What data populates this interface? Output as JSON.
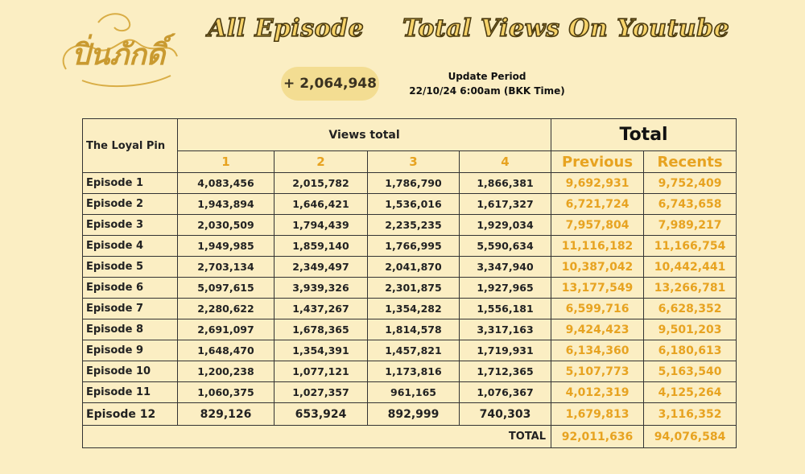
{
  "colors": {
    "background": "#fbeec3",
    "gold": "#e7a321",
    "pill": "#f3dd92",
    "title_fill": "#f7d36a"
  },
  "logo_text": "ปิ่นภักดิ์",
  "titles": {
    "left": "All Episode",
    "right": "Total Views On Youtube"
  },
  "delta": "+ 2,064,948",
  "update": {
    "label": "Update Period",
    "time": "22/10/24 6:00am (BKK Time)"
  },
  "table": {
    "show_name": "The Loyal Pin",
    "views_total_label": "Views total",
    "total_label": "Total",
    "part_headers": [
      "1",
      "2",
      "3",
      "4"
    ],
    "previous_label": "Previous",
    "recents_label": "Recents",
    "rows": [
      {
        "episode": "Episode 1",
        "p1": "4,083,456",
        "p2": "2,015,782",
        "p3": "1,786,790",
        "p4": "1,866,381",
        "previous": "9,692,931",
        "recents": "9,752,409"
      },
      {
        "episode": "Episode 2",
        "p1": "1,943,894",
        "p2": "1,646,421",
        "p3": "1,536,016",
        "p4": "1,617,327",
        "previous": "6,721,724",
        "recents": "6,743,658"
      },
      {
        "episode": "Episode 3",
        "p1": "2,030,509",
        "p2": "1,794,439",
        "p3": "2,235,235",
        "p4": "1,929,034",
        "previous": "7,957,804",
        "recents": "7,989,217"
      },
      {
        "episode": "Episode 4",
        "p1": "1,949,985",
        "p2": "1,859,140",
        "p3": "1,766,995",
        "p4": "5,590,634",
        "previous": "11,116,182",
        "recents": "11,166,754"
      },
      {
        "episode": "Episode 5",
        "p1": "2,703,134",
        "p2": "2,349,497",
        "p3": "2,041,870",
        "p4": "3,347,940",
        "previous": "10,387,042",
        "recents": "10,442,441"
      },
      {
        "episode": "Episode 6",
        "p1": "5,097,615",
        "p2": "3,939,326",
        "p3": "2,301,875",
        "p4": "1,927,965",
        "previous": "13,177,549",
        "recents": "13,266,781"
      },
      {
        "episode": "Episode 7",
        "p1": "2,280,622",
        "p2": "1,437,267",
        "p3": "1,354,282",
        "p4": "1,556,181",
        "previous": "6,599,716",
        "recents": "6,628,352"
      },
      {
        "episode": "Episode 8",
        "p1": "2,691,097",
        "p2": "1,678,365",
        "p3": "1,814,578",
        "p4": "3,317,163",
        "previous": "9,424,423",
        "recents": "9,501,203"
      },
      {
        "episode": "Episode 9",
        "p1": "1,648,470",
        "p2": "1,354,391",
        "p3": "1,457,821",
        "p4": "1,719,931",
        "previous": "6,134,360",
        "recents": "6,180,613"
      },
      {
        "episode": "Episode 10",
        "p1": "1,200,238",
        "p2": "1,077,121",
        "p3": "1,173,816",
        "p4": "1,712,365",
        "previous": "5,107,773",
        "recents": "5,163,540"
      },
      {
        "episode": "Episode 11",
        "p1": "1,060,375",
        "p2": "1,027,357",
        "p3": "961,165",
        "p4": "1,076,367",
        "previous": "4,012,319",
        "recents": "4,125,264"
      },
      {
        "episode": "Episode 12",
        "p1": "829,126",
        "p2": "653,924",
        "p3": "892,999",
        "p4": "740,303",
        "previous": "1,679,813",
        "recents": "3,116,352"
      }
    ],
    "grand_total_label": "TOTAL",
    "grand_total_previous": "92,011,636",
    "grand_total_recents": "94,076,584"
  }
}
